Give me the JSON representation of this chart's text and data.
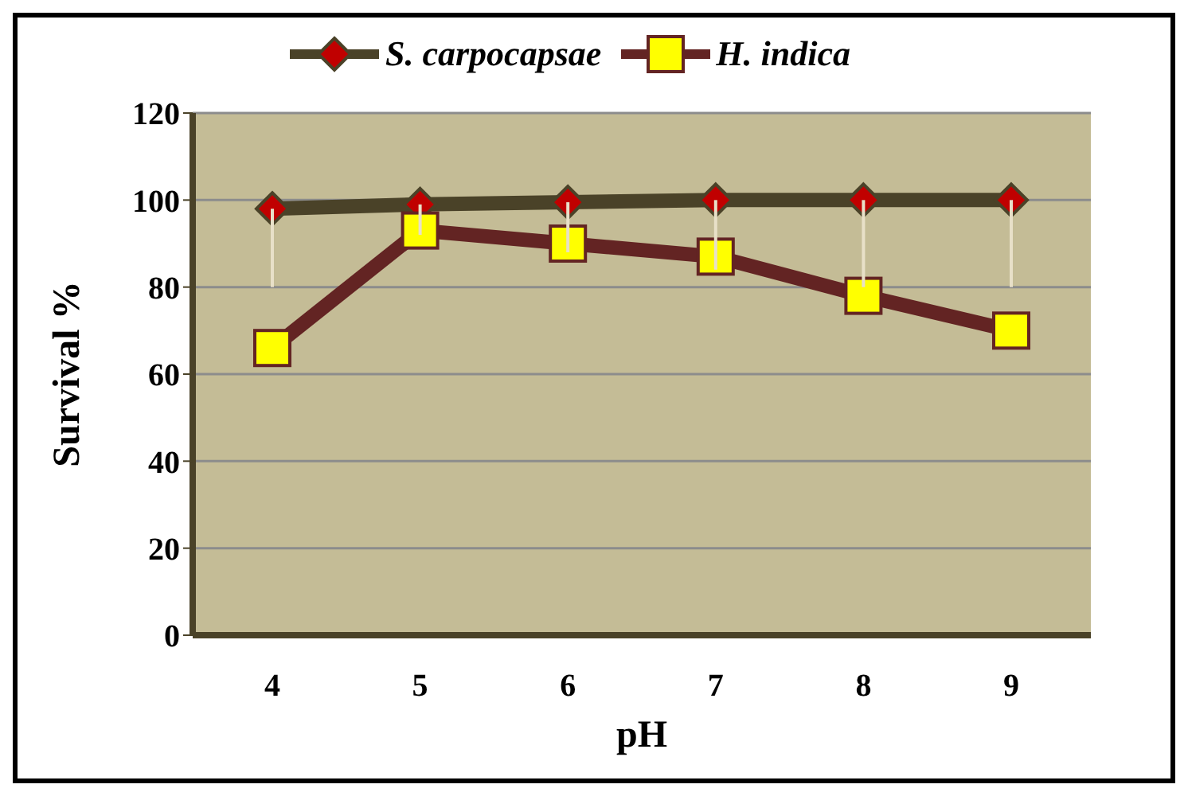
{
  "chart_data": {
    "type": "line",
    "xlabel": "pH",
    "ylabel": "Survival %",
    "categories": [
      "4",
      "5",
      "6",
      "7",
      "8",
      "9"
    ],
    "series": [
      {
        "name": "S. carpocapsae",
        "color": "#4a4228",
        "marker": "diamond",
        "values": [
          98,
          99,
          99.5,
          100,
          100,
          100
        ],
        "errors": [
          [
            80,
            98
          ],
          [
            92,
            99
          ],
          [
            88,
            99.5
          ],
          [
            84,
            100
          ],
          [
            80,
            100
          ],
          [
            80,
            100
          ]
        ]
      },
      {
        "name": "H. indica",
        "color": "#632423",
        "marker": "square",
        "values": [
          66,
          93,
          90,
          87,
          78,
          70
        ]
      }
    ],
    "ylim": [
      0,
      120
    ],
    "yticks": [
      0,
      20,
      40,
      60,
      80,
      100,
      120
    ],
    "grid": "y",
    "legend": "top"
  }
}
